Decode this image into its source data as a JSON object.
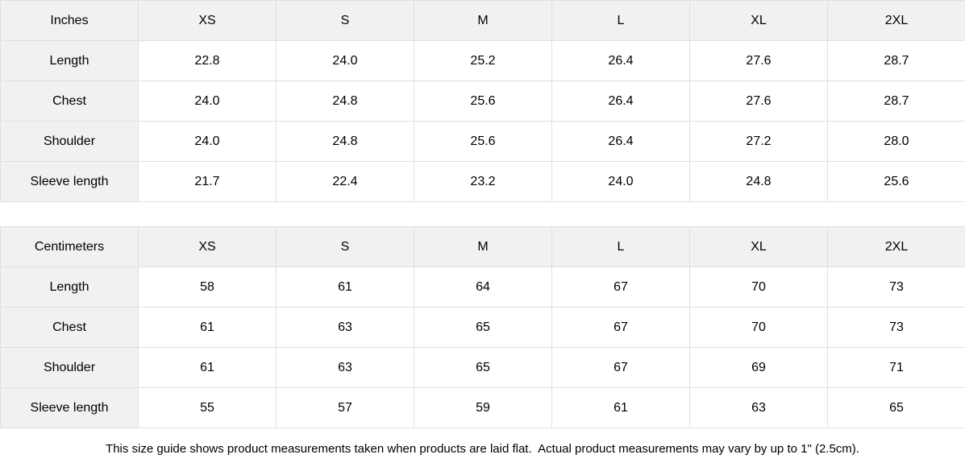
{
  "tables": [
    {
      "unit_label": "Inches",
      "sizes": [
        "XS",
        "S",
        "M",
        "L",
        "XL",
        "2XL"
      ],
      "rows": [
        {
          "label": "Length",
          "values": [
            "22.8",
            "24.0",
            "25.2",
            "26.4",
            "27.6",
            "28.7"
          ]
        },
        {
          "label": "Chest",
          "values": [
            "24.0",
            "24.8",
            "25.6",
            "26.4",
            "27.6",
            "28.7"
          ]
        },
        {
          "label": "Shoulder",
          "values": [
            "24.0",
            "24.8",
            "25.6",
            "26.4",
            "27.2",
            "28.0"
          ]
        },
        {
          "label": "Sleeve length",
          "values": [
            "21.7",
            "22.4",
            "23.2",
            "24.0",
            "24.8",
            "25.6"
          ]
        }
      ]
    },
    {
      "unit_label": "Centimeters",
      "sizes": [
        "XS",
        "S",
        "M",
        "L",
        "XL",
        "2XL"
      ],
      "rows": [
        {
          "label": "Length",
          "values": [
            "58",
            "61",
            "64",
            "67",
            "70",
            "73"
          ]
        },
        {
          "label": "Chest",
          "values": [
            "61",
            "63",
            "65",
            "67",
            "70",
            "73"
          ]
        },
        {
          "label": "Shoulder",
          "values": [
            "61",
            "63",
            "65",
            "67",
            "69",
            "71"
          ]
        },
        {
          "label": "Sleeve length",
          "values": [
            "55",
            "57",
            "59",
            "61",
            "63",
            "65"
          ]
        }
      ]
    }
  ],
  "footer_note": "This size guide shows product measurements taken when products are laid flat.  Actual product measurements may vary by up to 1\" (2.5cm).",
  "colors": {
    "header_bg": "#f1f1f1",
    "border": "#e0e0e0",
    "text": "#000000",
    "background": "#ffffff"
  }
}
